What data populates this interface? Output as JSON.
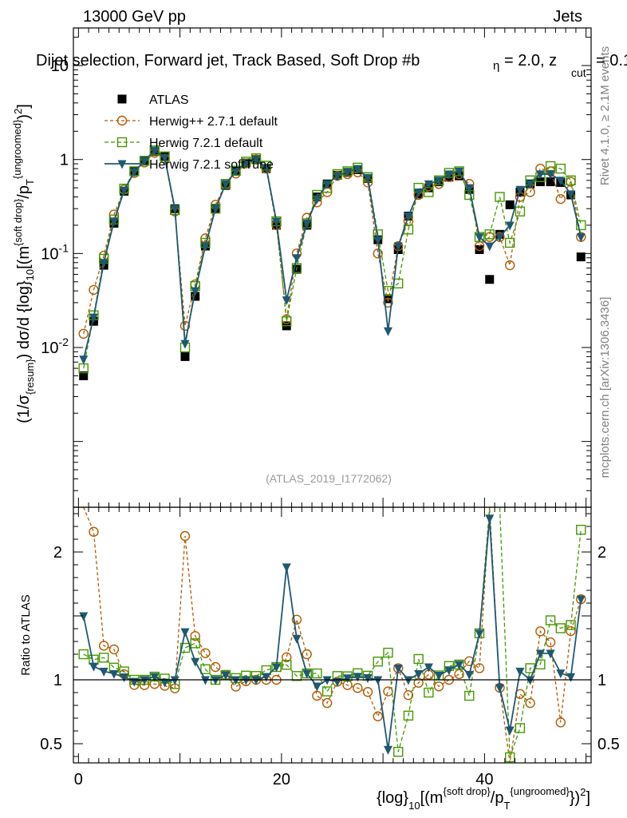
{
  "header": {
    "energy": "13000 GeV pp",
    "category": "Jets",
    "title": "Dijet selection, Forward jet, Track Based, Soft Drop #b",
    "title_tail": "= 2.0, z",
    "title_cut": "cut",
    "title_end": "= 0.1",
    "beta_symbol": "η"
  },
  "side_labels": {
    "rivet": "Rivet 4.1.0, ≥ 2.1M events",
    "mcplots": "mcplots.cern.ch [arXiv:1306.3436]"
  },
  "chart_data": {
    "type": "line",
    "analysis_label": "(ATLAS_2019_I1772062)",
    "ylabel_main": "(1/σ_{resum}) dσ/d {log}_10[(m^{soft drop}/p_T^{ungroomed})^2]",
    "ylabel_ratio": "Ratio to ATLAS",
    "xlabel": "{log}_10[(m^{soft drop}/p_T^{ungroomed})^2]",
    "xlim": [
      -0.5,
      50.5
    ],
    "ylim_main_log10": [
      -3.7,
      1.4
    ],
    "ylim_ratio": [
      0.35,
      2.35
    ],
    "x_ticks": [
      "0",
      "20",
      "40"
    ],
    "y_main_ticks": [
      "10^{-2}",
      "10^{-1}",
      "1",
      "10"
    ],
    "y_ratio_ticks": [
      "0.5",
      "1",
      "2"
    ],
    "x": [
      0.5,
      1.5,
      2.5,
      3.5,
      4.5,
      5.5,
      6.5,
      7.5,
      8.5,
      9.5,
      10.5,
      11.5,
      12.5,
      13.5,
      14.5,
      15.5,
      16.5,
      17.5,
      18.5,
      19.5,
      20.5,
      21.5,
      22.5,
      23.5,
      24.5,
      25.5,
      26.5,
      27.5,
      28.5,
      29.5,
      30.5,
      31.5,
      32.5,
      33.5,
      34.5,
      35.5,
      36.5,
      37.5,
      38.5,
      39.5,
      40.5,
      41.5,
      42.5,
      43.5,
      44.5,
      45.5,
      46.5,
      47.5,
      48.5,
      49.5
    ],
    "series": [
      {
        "name": "ATLAS",
        "color": "#000000",
        "marker": "square-filled",
        "values": [
          0.005,
          0.019,
          0.075,
          0.21,
          0.46,
          0.75,
          0.97,
          1.22,
          1.07,
          0.3,
          0.008,
          0.035,
          0.12,
          0.3,
          0.53,
          0.75,
          0.92,
          1.0,
          0.8,
          0.2,
          0.017,
          0.068,
          0.2,
          0.4,
          0.55,
          0.68,
          0.73,
          0.78,
          0.63,
          0.14,
          0.033,
          0.11,
          0.25,
          0.43,
          0.5,
          0.58,
          0.65,
          0.67,
          0.48,
          0.11,
          0.053,
          0.16,
          0.33,
          0.45,
          0.55,
          0.58,
          0.58,
          0.57,
          0.42,
          0.092
        ]
      },
      {
        "name": "Herwig++ 2.7.1 default",
        "color": "#b35900",
        "marker": "circle-open",
        "values": [
          0.014,
          0.041,
          0.095,
          0.26,
          0.48,
          0.72,
          0.93,
          1.18,
          1.02,
          0.28,
          0.017,
          0.047,
          0.145,
          0.33,
          0.55,
          0.71,
          0.91,
          1.0,
          0.8,
          0.2,
          0.02,
          0.1,
          0.24,
          0.35,
          0.45,
          0.67,
          0.7,
          0.73,
          0.57,
          0.1,
          0.03,
          0.12,
          0.22,
          0.42,
          0.52,
          0.55,
          0.65,
          0.7,
          0.55,
          0.12,
          0.15,
          0.15,
          0.075,
          0.4,
          0.45,
          0.8,
          0.75,
          0.38,
          0.58,
          0.15
        ]
      },
      {
        "name": "Herwig 7.2.1 default",
        "color": "#449900",
        "marker": "square-open",
        "values": [
          0.006,
          0.022,
          0.088,
          0.23,
          0.49,
          0.75,
          0.97,
          1.25,
          1.08,
          0.29,
          0.01,
          0.045,
          0.13,
          0.3,
          0.55,
          0.76,
          0.95,
          1.03,
          0.86,
          0.22,
          0.019,
          0.07,
          0.21,
          0.42,
          0.5,
          0.7,
          0.75,
          0.82,
          0.65,
          0.16,
          0.04,
          0.048,
          0.18,
          0.5,
          0.45,
          0.6,
          0.72,
          0.75,
          0.42,
          0.15,
          0.16,
          0.4,
          0.13,
          0.28,
          0.6,
          0.65,
          0.85,
          0.8,
          0.6,
          0.2
        ]
      },
      {
        "name": "Herwig 7.2.1 softTune",
        "color": "#1f5870",
        "marker": "triangle-down-filled",
        "values": [
          0.0075,
          0.021,
          0.08,
          0.22,
          0.47,
          0.74,
          0.97,
          1.25,
          1.05,
          0.3,
          0.011,
          0.04,
          0.12,
          0.3,
          0.55,
          0.75,
          0.92,
          1.0,
          0.82,
          0.22,
          0.032,
          0.09,
          0.21,
          0.38,
          0.55,
          0.67,
          0.74,
          0.8,
          0.64,
          0.14,
          0.015,
          0.12,
          0.25,
          0.45,
          0.55,
          0.6,
          0.7,
          0.75,
          0.5,
          0.15,
          0.12,
          0.15,
          0.2,
          0.48,
          0.55,
          0.7,
          0.7,
          0.6,
          0.43,
          0.15
        ]
      }
    ]
  }
}
